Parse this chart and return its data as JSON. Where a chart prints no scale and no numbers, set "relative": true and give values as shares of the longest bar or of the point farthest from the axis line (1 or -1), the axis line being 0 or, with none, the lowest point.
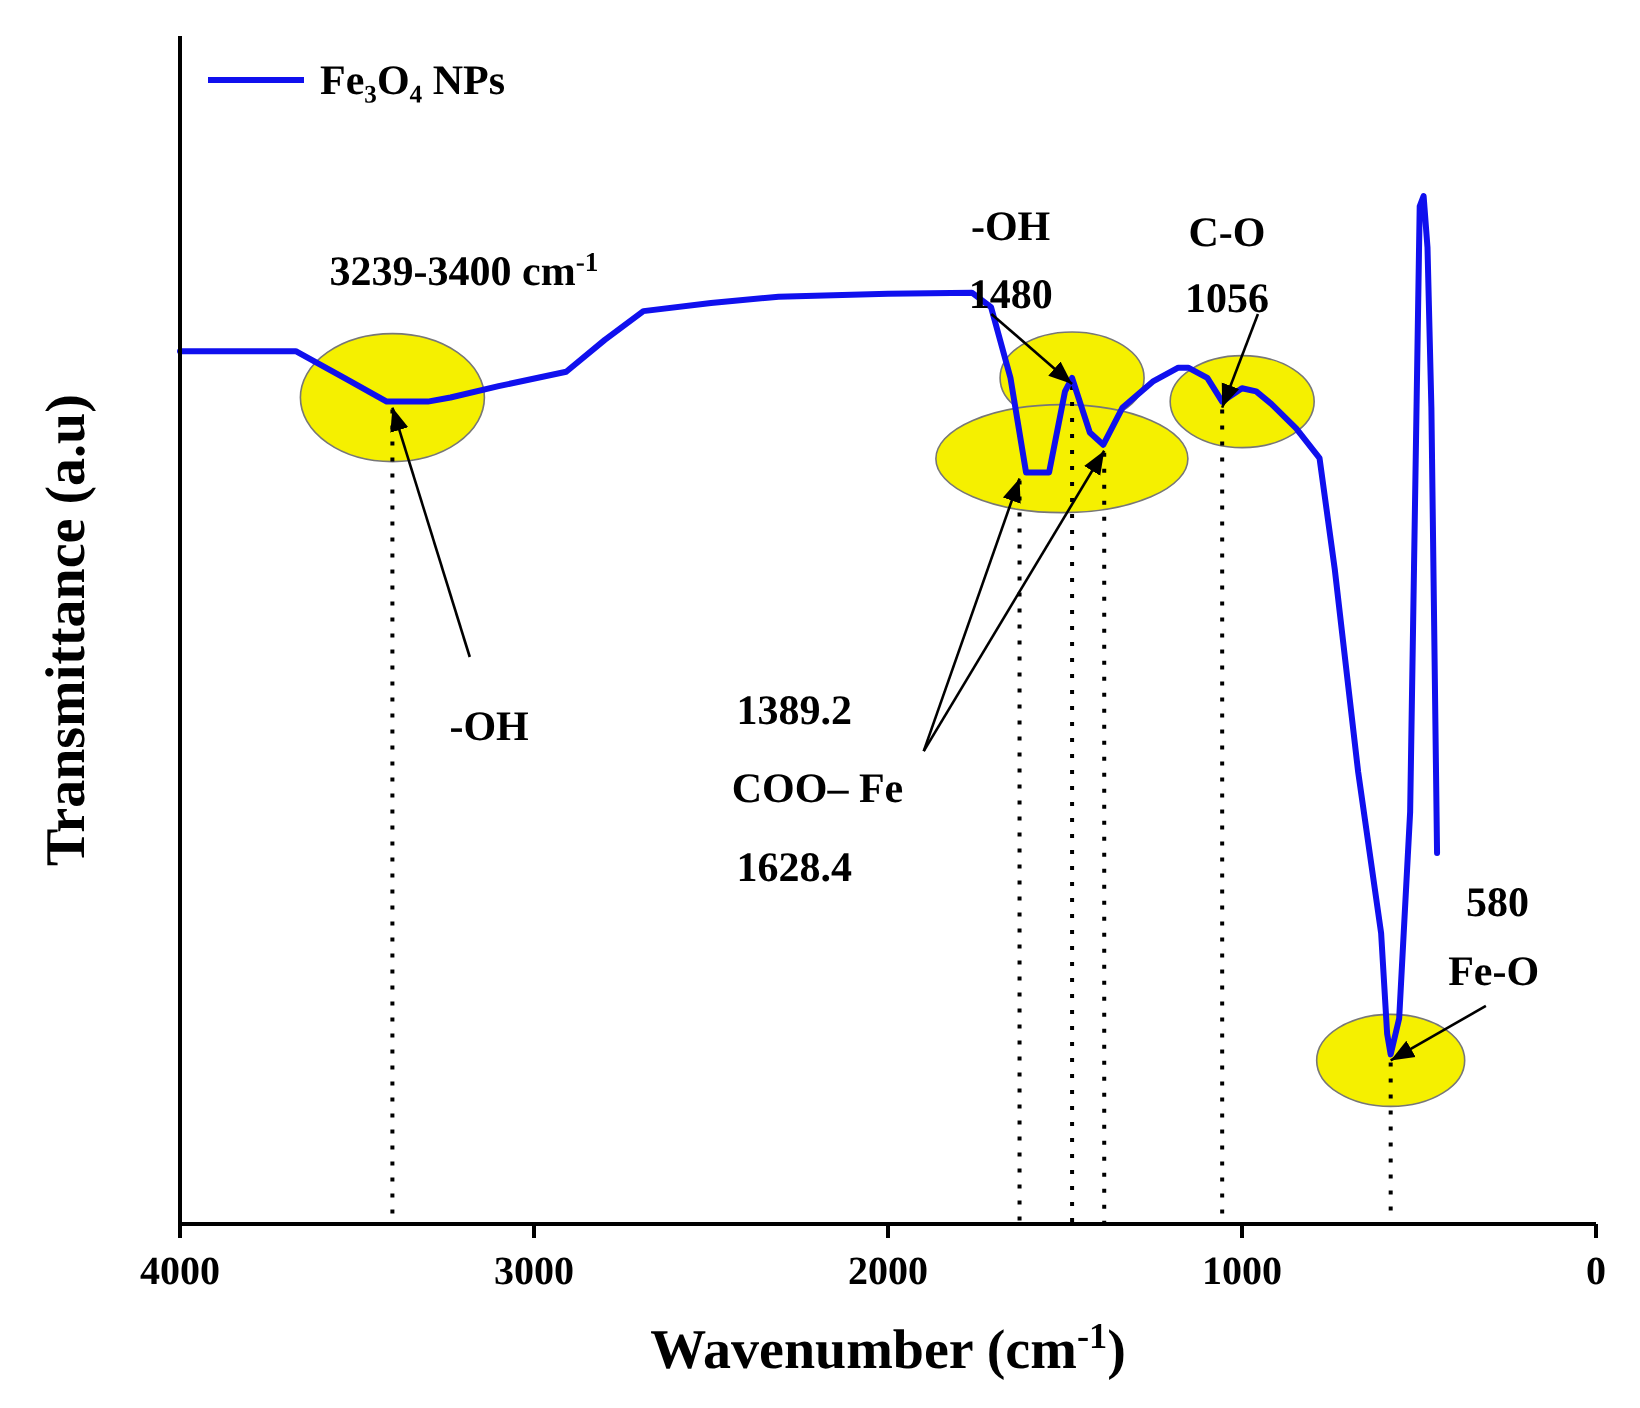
{
  "chart_data": {
    "type": "line",
    "relative": true,
    "xlabel": "Wavenumber (cm$^{-1}$)",
    "ylabel": "Transmittance (a.u)",
    "xlim": [
      4000,
      0
    ],
    "xticks": [
      4000,
      3000,
      2000,
      1000,
      0
    ],
    "legend": "top left",
    "grid": false,
    "marker": "none",
    "line_style": "solid",
    "series": [
      {
        "name": "Fe₃O₄ NPs",
        "color": "#1010ee",
        "x": [
          4000,
          3673,
          3536,
          3416,
          3300,
          3236,
          3100,
          2909,
          2800,
          2691,
          2500,
          2309,
          2000,
          1763,
          1709,
          1654,
          1610,
          1545,
          1500,
          1480,
          1430,
          1392,
          1338,
          1250,
          1180,
          1152,
          1098,
          1056,
          1000,
          960,
          918,
          847,
          781,
          738,
          672,
          607,
          590,
          580,
          556,
          525,
          498,
          487,
          476,
          465,
          449
        ],
        "values": [
          0.849,
          0.849,
          0.823,
          0.8,
          0.8,
          0.804,
          0.815,
          0.829,
          0.86,
          0.888,
          0.896,
          0.902,
          0.905,
          0.906,
          0.892,
          0.823,
          0.731,
          0.731,
          0.81,
          0.823,
          0.77,
          0.758,
          0.794,
          0.82,
          0.833,
          0.833,
          0.823,
          0.8,
          0.813,
          0.81,
          0.798,
          0.774,
          0.745,
          0.637,
          0.44,
          0.283,
          0.185,
          0.165,
          0.2,
          0.401,
          0.99,
          1,
          0.95,
          0.794,
          0.361
        ]
      }
    ],
    "ref_lines": [
      {
        "axis": "x",
        "value": 3400,
        "color": "#000000",
        "line_style": "dotted"
      },
      {
        "axis": "x",
        "value": 1628.4,
        "color": "#000000",
        "line_style": "dotted"
      },
      {
        "axis": "x",
        "value": 1480,
        "color": "#000000",
        "line_style": "dotted"
      },
      {
        "axis": "x",
        "value": 1389.2,
        "color": "#000000",
        "line_style": "dotted"
      },
      {
        "axis": "x",
        "value": 1056,
        "color": "#000000",
        "line_style": "dotted"
      },
      {
        "axis": "x",
        "value": 580,
        "color": "#000000",
        "line_style": "dotted"
      }
    ],
    "annotations": [
      "3239-3400 cm$^{-1}$",
      "-OH",
      "-OH",
      "1480",
      "C-O",
      "1056",
      "1389.2",
      "COO– Fe",
      "1628.4",
      "580",
      "Fe-O"
    ]
  }
}
